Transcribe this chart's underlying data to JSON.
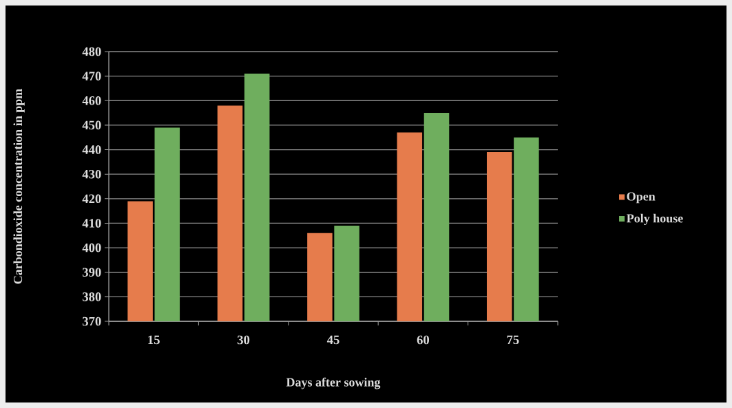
{
  "chart_data": {
    "type": "bar",
    "xlabel": "Days after sowing",
    "ylabel": "Carbondioxide concentration in ppm",
    "categories": [
      "15",
      "30",
      "45",
      "60",
      "75"
    ],
    "series": [
      {
        "name": "Open",
        "color": "#e67c4c",
        "values": [
          419,
          458,
          406,
          447,
          439
        ]
      },
      {
        "name": "Poly house",
        "color": "#6fae5e",
        "values": [
          449,
          471,
          409,
          455,
          445
        ]
      }
    ],
    "ylim": [
      370,
      480
    ],
    "yticks": [
      370,
      380,
      390,
      400,
      410,
      420,
      430,
      440,
      450,
      460,
      470,
      480
    ],
    "grid": "y",
    "legend": "right"
  }
}
